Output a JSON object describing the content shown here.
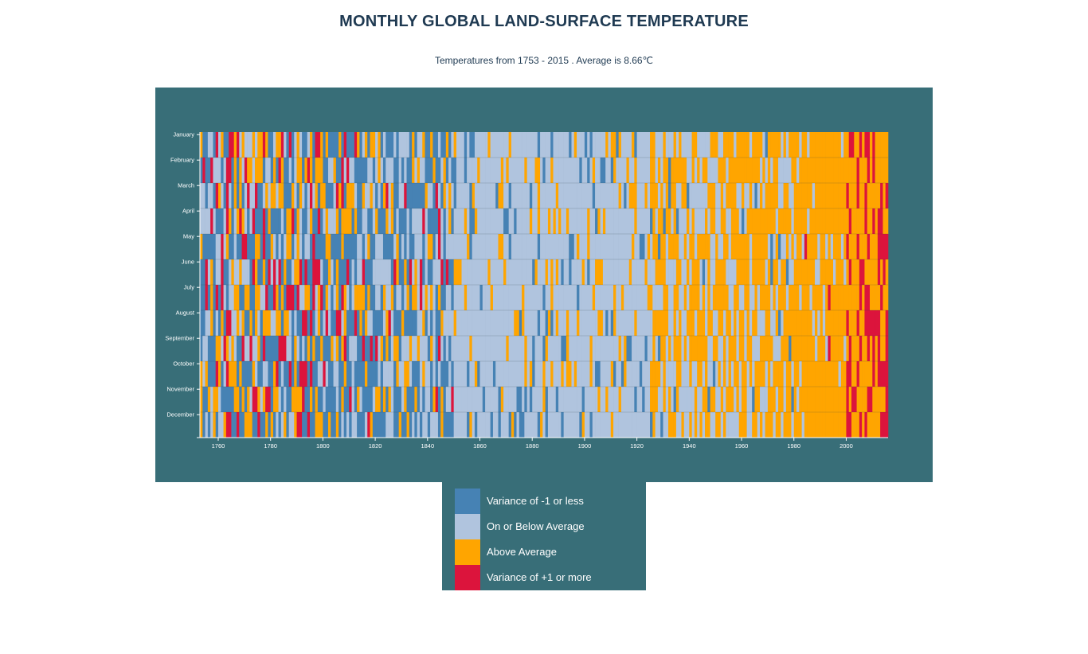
{
  "title": "MONTHLY GLOBAL LAND-SURFACE TEMPERATURE",
  "subtitle": "Temperatures from 1753 - 2015 . Average is 8.66℃",
  "colors": {
    "panel_bg": "#386e78",
    "title": "#1f3a52",
    "cold": "#4682b4",
    "below": "#b0c4de",
    "above": "#ffa500",
    "hot": "#dc143c"
  },
  "legend": [
    {
      "label": "Variance of -1 or less",
      "color": "#4682b4"
    },
    {
      "label": "On or Below Average",
      "color": "#b0c4de"
    },
    {
      "label": "Above Average",
      "color": "#ffa500"
    },
    {
      "label": "Variance of +1 or more",
      "color": "#dc143c"
    }
  ],
  "chart_data": {
    "type": "heatmap",
    "title": "MONTHLY GLOBAL LAND-SURFACE TEMPERATURE",
    "subtitle": "Temperatures from 1753 - 2015 . Average is 8.66℃",
    "base_temperature": 8.66,
    "x_range": [
      1753,
      2015
    ],
    "x_ticks": [
      1760,
      1780,
      1800,
      1820,
      1840,
      1860,
      1880,
      1900,
      1920,
      1940,
      1960,
      1980,
      2000
    ],
    "y_categories": [
      "January",
      "February",
      "March",
      "April",
      "May",
      "June",
      "July",
      "August",
      "September",
      "October",
      "November",
      "December"
    ],
    "color_categories": [
      {
        "label": "Variance of -1 or less",
        "color": "#4682b4",
        "max_variance": -1
      },
      {
        "label": "On or Below Average",
        "color": "#b0c4de",
        "max_variance": 0
      },
      {
        "label": "Above Average",
        "color": "#ffa500",
        "max_variance": 1
      },
      {
        "label": "Variance of +1 or more",
        "color": "#dc143c",
        "max_variance": null
      }
    ],
    "era_distribution": [
      {
        "from": 1753,
        "to": 1800,
        "cold": 0.36,
        "below": 0.24,
        "above": 0.26,
        "hot": 0.14
      },
      {
        "from": 1800,
        "to": 1820,
        "cold": 0.5,
        "below": 0.24,
        "above": 0.2,
        "hot": 0.06
      },
      {
        "from": 1820,
        "to": 1850,
        "cold": 0.42,
        "below": 0.36,
        "above": 0.16,
        "hot": 0.06
      },
      {
        "from": 1850,
        "to": 1925,
        "cold": 0.1,
        "below": 0.76,
        "above": 0.14,
        "hot": 0.0
      },
      {
        "from": 1925,
        "to": 1950,
        "cold": 0.04,
        "below": 0.48,
        "above": 0.48,
        "hot": 0.0
      },
      {
        "from": 1950,
        "to": 1980,
        "cold": 0.02,
        "below": 0.36,
        "above": 0.62,
        "hot": 0.0
      },
      {
        "from": 1980,
        "to": 2000,
        "cold": 0.0,
        "below": 0.12,
        "above": 0.86,
        "hot": 0.02
      },
      {
        "from": 2000,
        "to": 2016,
        "cold": 0.0,
        "below": 0.0,
        "above": 0.62,
        "hot": 0.38
      }
    ]
  }
}
